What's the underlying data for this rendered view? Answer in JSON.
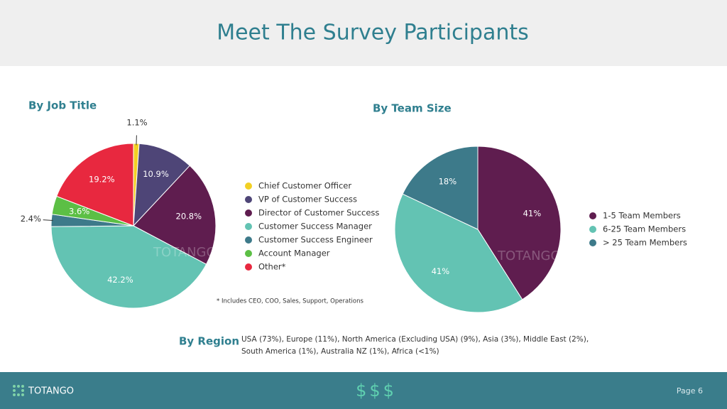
{
  "page": {
    "title": "Meet The Survey Participants",
    "region": {
      "heading": "By Region",
      "lines": [
        "USA (73%), Europe (11%), North America (Excluding USA) (9%), Asia (3%), Middle East (2%),",
        "South America (1%), Australia NZ (1%), Africa (<1%)"
      ]
    },
    "watermark": "TOTANGO",
    "footer": {
      "logo": "TOTANGO",
      "icon": "$$$",
      "page": "Page 6"
    }
  },
  "chart_data": [
    {
      "type": "pie",
      "title": "By Job Title",
      "categories": [
        "Chief Customer Officer",
        "VP of Customer Success",
        "Director of Customer Success",
        "Customer Success Manager",
        "Customer Success Engineer",
        "Account Manager",
        "Other*"
      ],
      "values": [
        1.1,
        10.9,
        20.8,
        42.2,
        2.4,
        3.6,
        19.2
      ],
      "value_labels": [
        "1.1%",
        "10.9%",
        "20.8%",
        "42.2%",
        "2.4%",
        "3.6%",
        "19.2%"
      ],
      "colors": [
        "#f2d024",
        "#4e4577",
        "#5f1d4f",
        "#63c3b3",
        "#3d7a8a",
        "#5cbf45",
        "#e8283f"
      ],
      "annotation": "* Includes CEO, COO, Sales, Support, Operations",
      "legend": "right"
    },
    {
      "type": "pie",
      "title": "By Team Size",
      "categories": [
        "1-5 Team Members",
        "6-25 Team Members",
        "> 25  Team Members"
      ],
      "values": [
        41,
        41,
        18
      ],
      "value_labels": [
        "41%",
        "41%",
        "18%"
      ],
      "colors": [
        "#5f1d4f",
        "#63c3b3",
        "#3d7a8a"
      ],
      "legend": "right"
    }
  ]
}
